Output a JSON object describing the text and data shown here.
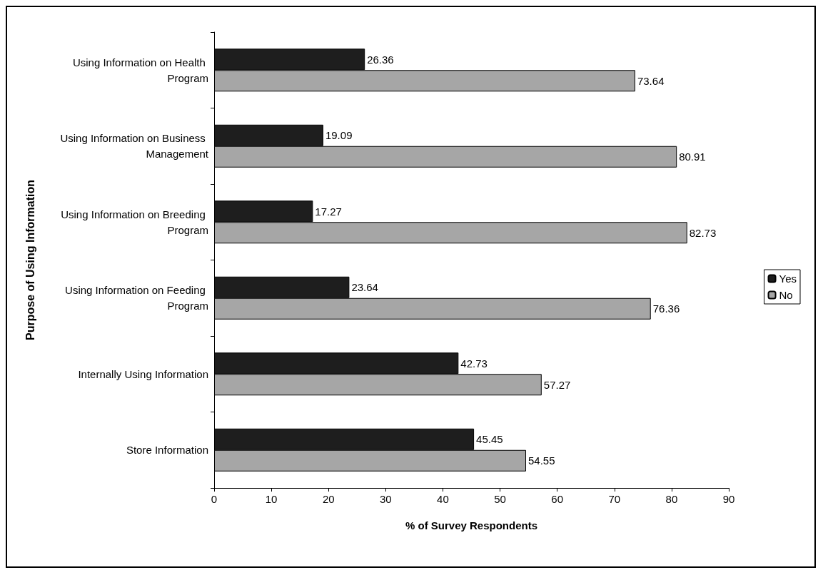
{
  "chart_data": {
    "type": "bar",
    "orientation": "horizontal",
    "xlabel": "% of Survey Respondents",
    "ylabel": "Purpose of Using Information",
    "categories": [
      "Using Information on Health Program",
      "Using Information on Business Management",
      "Using Information on Breeding Program",
      "Using Information on Feeding Program",
      "Internally Using Information",
      "Store Information"
    ],
    "series": [
      {
        "name": "Yes",
        "color": "#1e1e1e",
        "values": [
          26.36,
          19.09,
          17.27,
          23.64,
          42.73,
          45.45
        ]
      },
      {
        "name": "No",
        "color": "#a6a6a6",
        "values": [
          73.64,
          80.91,
          82.73,
          76.36,
          57.27,
          54.55
        ]
      }
    ],
    "xlim": [
      0,
      90
    ],
    "xticks": [
      0,
      10,
      20,
      30,
      40,
      50,
      60,
      70,
      80,
      90
    ],
    "data_labels": true,
    "legend": "right",
    "grid": false
  }
}
